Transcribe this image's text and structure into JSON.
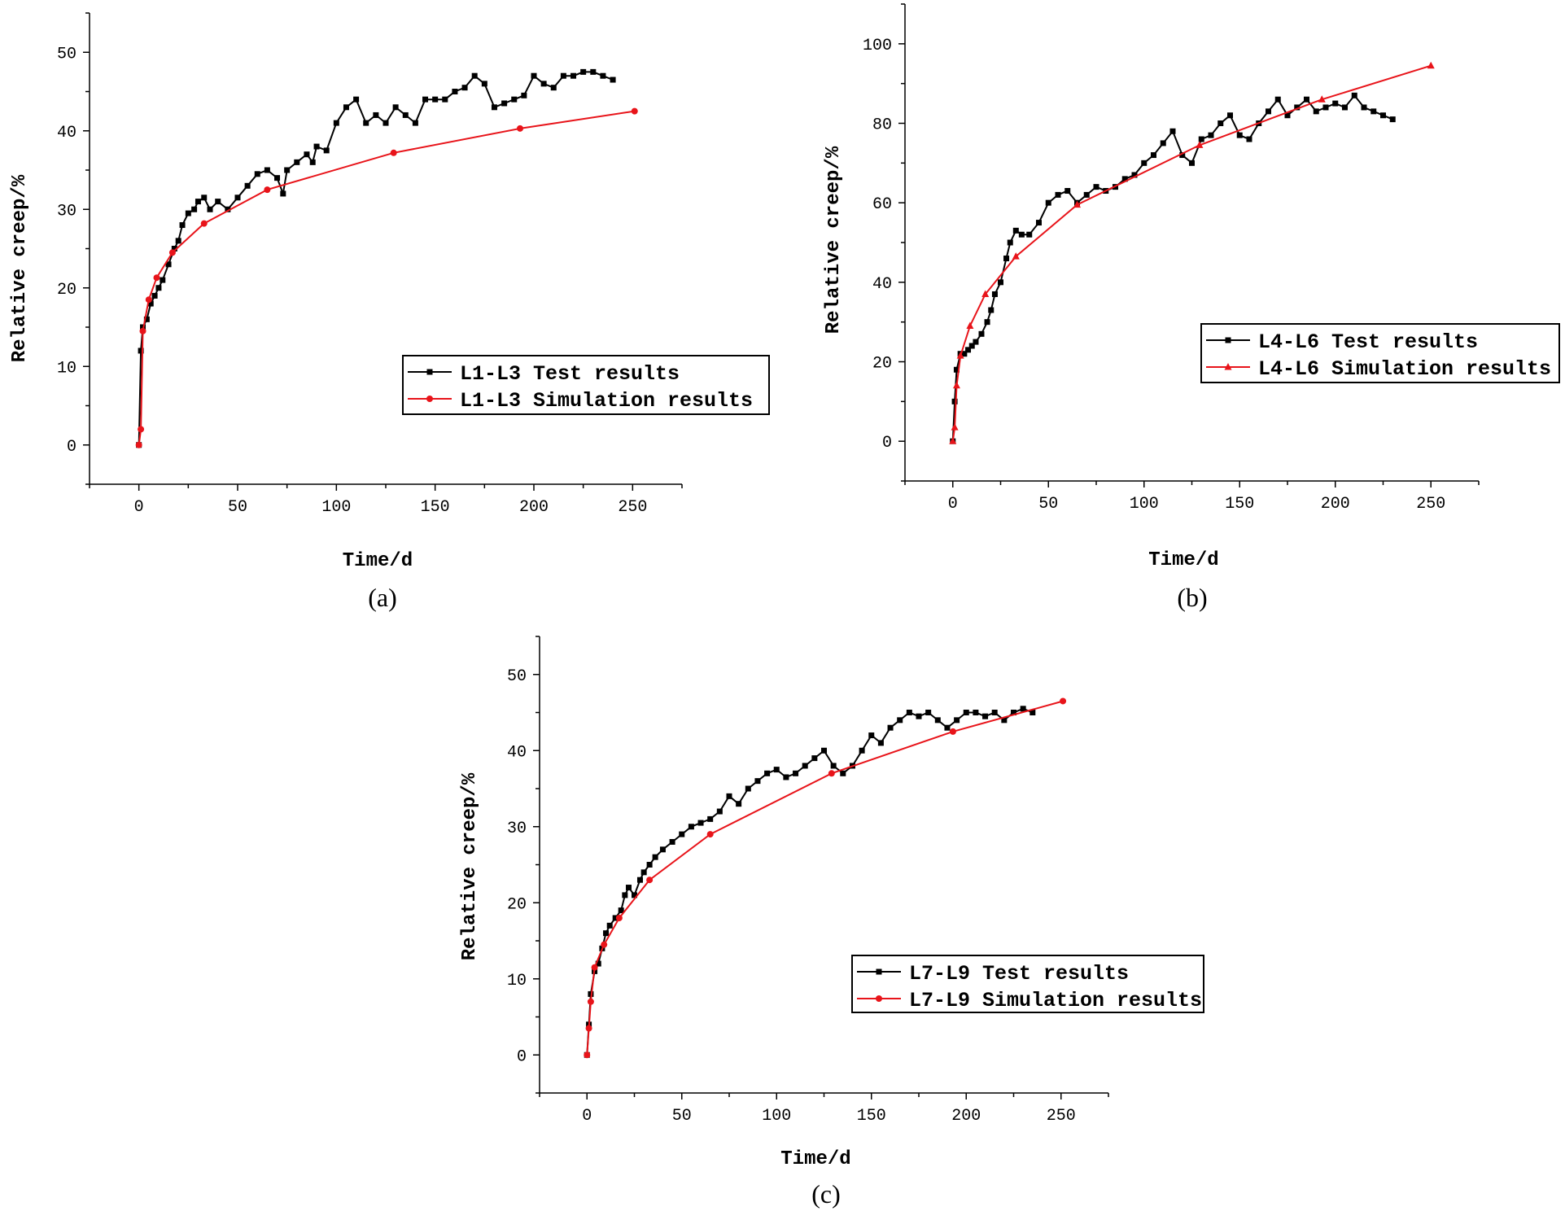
{
  "chart_data": [
    {
      "panel": "(a)",
      "type": "line",
      "xlabel": "Time/d",
      "ylabel": "Relative creep/%",
      "xlim": [
        -25,
        275
      ],
      "ylim": [
        -5,
        55
      ],
      "xticks": [
        0,
        50,
        100,
        150,
        200,
        250
      ],
      "yticks": [
        0,
        10,
        20,
        30,
        40,
        50
      ],
      "legend_position": "center-right",
      "series": [
        {
          "name": "L1-L3 Test results",
          "color": "#000000",
          "marker": "square",
          "x": [
            0,
            1,
            2,
            4,
            6,
            8,
            10,
            12,
            15,
            18,
            20,
            22,
            25,
            28,
            30,
            33,
            36,
            40,
            45,
            50,
            55,
            60,
            65,
            70,
            73,
            75,
            80,
            85,
            88,
            90,
            95,
            100,
            105,
            110,
            115,
            120,
            125,
            130,
            135,
            140,
            145,
            150,
            155,
            160,
            165,
            170,
            175,
            180,
            185,
            190,
            195,
            200,
            205,
            210,
            215,
            220,
            225,
            230,
            235,
            240
          ],
          "values": [
            0,
            12,
            15,
            16,
            18,
            19,
            20,
            21,
            23,
            25,
            26,
            28,
            29.5,
            30,
            31,
            31.5,
            30,
            31,
            30,
            31.5,
            33,
            34.5,
            35,
            34,
            32,
            35,
            36,
            37,
            36,
            38,
            37.5,
            41,
            43,
            44,
            41,
            42,
            41,
            43,
            42,
            41,
            44,
            44,
            44,
            45,
            45.5,
            47,
            46,
            43,
            43.5,
            44,
            44.5,
            47,
            46,
            45.5,
            47,
            47,
            47.5,
            47.5,
            47,
            46.5
          ]
        },
        {
          "name": "L1-L3 Simulation results",
          "color": "#e8141a",
          "marker": "circle",
          "x": [
            0,
            1,
            2,
            5,
            9,
            17,
            33,
            65,
            129,
            193,
            251
          ],
          "values": [
            0,
            2,
            14.5,
            18.5,
            21.3,
            24.5,
            28.2,
            32.5,
            37.2,
            40.3,
            42.5
          ]
        }
      ]
    },
    {
      "panel": "(b)",
      "type": "line",
      "xlabel": "Time/d",
      "ylabel": "Relative creep/%",
      "xlim": [
        -25,
        275
      ],
      "ylim": [
        -10,
        110
      ],
      "xticks": [
        0,
        50,
        100,
        150,
        200,
        250
      ],
      "yticks": [
        0,
        20,
        40,
        60,
        80,
        100
      ],
      "legend_position": "center-right",
      "series": [
        {
          "name": "L4-L6 Test results",
          "color": "#000000",
          "marker": "square",
          "x": [
            0,
            1,
            2,
            4,
            6,
            8,
            10,
            12,
            15,
            18,
            20,
            22,
            25,
            28,
            30,
            33,
            36,
            40,
            45,
            50,
            55,
            60,
            65,
            70,
            75,
            80,
            85,
            90,
            95,
            100,
            105,
            110,
            115,
            120,
            125,
            130,
            135,
            140,
            145,
            150,
            155,
            160,
            165,
            170,
            175,
            180,
            185,
            190,
            195,
            200,
            205,
            210,
            215,
            220,
            225,
            230
          ],
          "values": [
            0,
            10,
            18,
            22,
            22,
            23,
            24,
            25,
            27,
            30,
            33,
            37,
            40,
            46,
            50,
            53,
            52,
            52,
            55,
            60,
            62,
            63,
            60,
            62,
            64,
            63,
            64,
            66,
            67,
            70,
            72,
            75,
            78,
            72,
            70,
            76,
            77,
            80,
            82,
            77,
            76,
            80,
            83,
            86,
            82,
            84,
            86,
            83,
            84,
            85,
            84,
            87,
            84,
            83,
            82,
            81
          ]
        },
        {
          "name": "L4-L6 Simulation results",
          "color": "#e8141a",
          "marker": "triangle",
          "x": [
            0,
            1,
            2,
            4,
            9,
            17,
            33,
            65,
            129,
            193,
            250
          ],
          "values": [
            0,
            3.5,
            14,
            21.5,
            29,
            37,
            46.5,
            59.5,
            74.5,
            86,
            94.5
          ]
        }
      ]
    },
    {
      "panel": "(c)",
      "type": "line",
      "xlabel": "Time/d",
      "ylabel": "Relative creep/%",
      "xlim": [
        -25,
        275
      ],
      "ylim": [
        -5,
        55
      ],
      "xticks": [
        0,
        50,
        100,
        150,
        200,
        250
      ],
      "yticks": [
        0,
        10,
        20,
        30,
        40,
        50
      ],
      "legend_position": "center-right",
      "series": [
        {
          "name": "L7-L9 Test results",
          "color": "#000000",
          "marker": "square",
          "x": [
            0,
            1,
            2,
            4,
            6,
            8,
            10,
            12,
            15,
            18,
            20,
            22,
            25,
            28,
            30,
            33,
            36,
            40,
            45,
            50,
            55,
            60,
            65,
            70,
            75,
            80,
            85,
            90,
            95,
            100,
            105,
            110,
            115,
            120,
            125,
            130,
            135,
            140,
            145,
            150,
            155,
            160,
            165,
            170,
            175,
            180,
            185,
            190,
            195,
            200,
            205,
            210,
            215,
            220,
            225,
            230,
            235
          ],
          "values": [
            0,
            4,
            8,
            11,
            12,
            14,
            16,
            17,
            18,
            19,
            21,
            22,
            21,
            23,
            24,
            25,
            26,
            27,
            28,
            29,
            30,
            30.5,
            31,
            32,
            34,
            33,
            35,
            36,
            37,
            37.5,
            36.5,
            37,
            38,
            39,
            40,
            38,
            37,
            38,
            40,
            42,
            41,
            43,
            44,
            45,
            44.5,
            45,
            44,
            43,
            44,
            45,
            45,
            44.5,
            45,
            44,
            45,
            45.5,
            45
          ]
        },
        {
          "name": "L7-L9 Simulation results",
          "color": "#e8141a",
          "marker": "circle",
          "x": [
            0,
            1,
            2,
            4,
            9,
            17,
            33,
            65,
            129,
            193,
            251
          ],
          "values": [
            0,
            3.5,
            7,
            11.5,
            14.5,
            18,
            23,
            29,
            37,
            42.5,
            46.5
          ]
        }
      ]
    }
  ]
}
